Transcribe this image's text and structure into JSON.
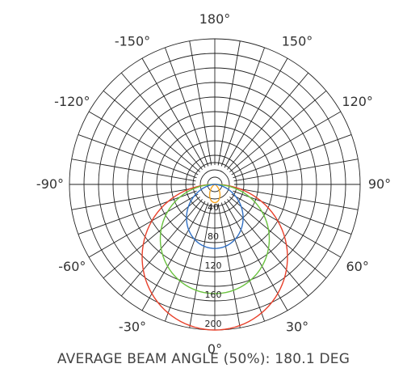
{
  "caption": "AVERAGE BEAM ANGLE (50%): 180.1 DEG",
  "chart_data": {
    "type": "polar",
    "angle_labels": [
      {
        "deg": 180,
        "text": "180°"
      },
      {
        "deg": -150,
        "text": "-150°"
      },
      {
        "deg": 150,
        "text": "150°"
      },
      {
        "deg": -120,
        "text": "-120°"
      },
      {
        "deg": 120,
        "text": "120°"
      },
      {
        "deg": -90,
        "text": "-90°"
      },
      {
        "deg": 90,
        "text": "90°"
      },
      {
        "deg": -60,
        "text": "-60°"
      },
      {
        "deg": 60,
        "text": "60°"
      },
      {
        "deg": -30,
        "text": "-30°"
      },
      {
        "deg": 30,
        "text": "30°"
      },
      {
        "deg": 0,
        "text": "0°"
      }
    ],
    "radial_ticks": [
      40,
      80,
      120,
      160,
      200
    ],
    "radial_max": 200,
    "grid_rings": [
      10,
      20,
      30,
      40,
      60,
      80,
      100,
      120,
      140,
      160,
      180,
      200
    ],
    "spoke_step_deg": 10,
    "grid": true,
    "series": [
      {
        "color": "#e8402a",
        "peak": 200,
        "shape": 1.0
      },
      {
        "color": "#6ac23f",
        "peak": 150,
        "shape": 1.0
      },
      {
        "color": "#f5a623",
        "peak": 25,
        "shape": 4.0
      },
      {
        "color": "#2f6fc4",
        "peak": 88,
        "shape": 1.4
      }
    ]
  }
}
